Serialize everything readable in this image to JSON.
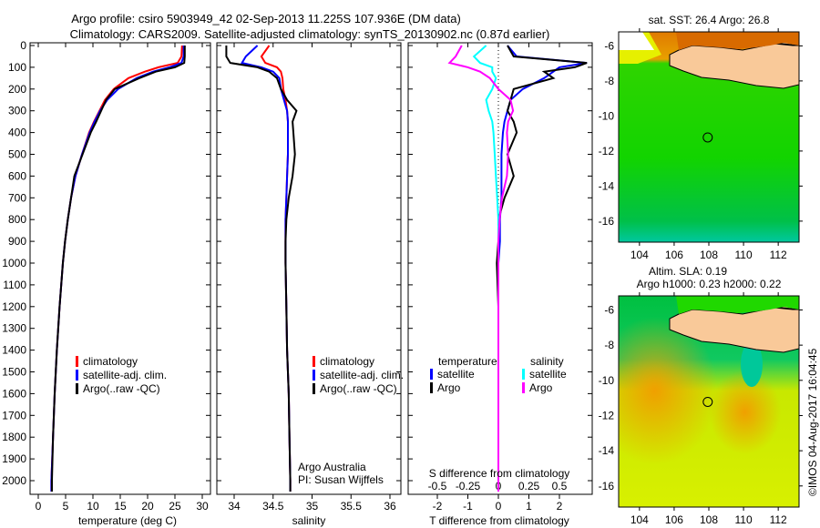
{
  "chart_data": [
    {
      "type": "line",
      "id": "temperature",
      "title_line1": "Argo profile: csiro 5903949_42 02-Sep-2013 11.225S 107.936E (DM data)",
      "title_line2": "Climatology: CARS2009. Satellite-adjusted climatology: synTS_20130902.nc (0.87d earlier)",
      "xlabel": "temperature (deg C)",
      "xlim": [
        -1.5,
        31.5
      ],
      "xticks": [
        0,
        5,
        10,
        15,
        20,
        25,
        30
      ],
      "ylim": [
        0,
        2060
      ],
      "yticks": [
        0,
        100,
        200,
        300,
        400,
        500,
        600,
        700,
        800,
        900,
        1000,
        1100,
        1200,
        1300,
        1400,
        1500,
        1600,
        1700,
        1800,
        1900,
        2000
      ],
      "depth": [
        0,
        50,
        80,
        100,
        120,
        150,
        200,
        250,
        300,
        350,
        400,
        500,
        600,
        700,
        800,
        900,
        1000,
        1200,
        1400,
        1600,
        1800,
        2000,
        2050
      ],
      "series": [
        {
          "name": "climatology",
          "color": "#ff0000",
          "values": [
            26.3,
            26.2,
            25.5,
            22,
            19.5,
            16.5,
            13.8,
            12.2,
            11.2,
            10.2,
            9.3,
            8,
            6.8,
            6,
            5.4,
            4.9,
            4.5,
            3.9,
            3.4,
            3.0,
            2.7,
            2.4,
            2.4
          ]
        },
        {
          "name": "satellite-adj. clim.",
          "color": "#0000ff",
          "values": [
            26.6,
            26.6,
            26.2,
            24,
            21,
            18,
            14.6,
            12.6,
            11.3,
            10.3,
            9.4,
            8,
            6.8,
            6,
            5.4,
            4.9,
            4.5,
            3.9,
            3.4,
            3.0,
            2.7,
            2.4,
            2.4
          ]
        },
        {
          "name": "Argo(..raw -QC)",
          "color": "#000000",
          "values": [
            26.8,
            26.8,
            26.7,
            25,
            21.5,
            18.5,
            14,
            12.4,
            11.5,
            10.6,
            9.6,
            8.1,
            6.6,
            6,
            5.4,
            4.9,
            4.5,
            3.9,
            3.4,
            3.0,
            2.7,
            2.5,
            2.5
          ]
        }
      ]
    },
    {
      "type": "line",
      "id": "salinity",
      "xlabel": "salinity",
      "xlim": [
        33.8,
        36.1
      ],
      "xticks": [
        34,
        34.5,
        35,
        35.5,
        36
      ],
      "depth": [
        0,
        50,
        80,
        100,
        120,
        150,
        200,
        250,
        300,
        350,
        400,
        500,
        600,
        700,
        800,
        900,
        1000,
        1200,
        1400,
        1600,
        1800,
        2000,
        2050
      ],
      "series": [
        {
          "name": "climatology",
          "color": "#ff0000",
          "values": [
            34.45,
            34.35,
            34.4,
            34.55,
            34.6,
            34.62,
            34.63,
            34.66,
            34.68,
            34.69,
            34.69,
            34.69,
            34.68,
            34.67,
            34.66,
            34.66,
            34.66,
            34.67,
            34.68,
            34.7,
            34.71,
            34.72,
            34.72
          ]
        },
        {
          "name": "satellite-adj. clim.",
          "color": "#0000ff",
          "values": [
            34.3,
            34.15,
            34.1,
            34.35,
            34.5,
            34.58,
            34.6,
            34.64,
            34.68,
            34.69,
            34.69,
            34.69,
            34.68,
            34.67,
            34.66,
            34.66,
            34.66,
            34.67,
            34.68,
            34.7,
            34.71,
            34.72,
            34.72
          ]
        },
        {
          "name": "Argo(..raw -QC)",
          "color": "#000000",
          "values": [
            33.9,
            33.9,
            33.95,
            34.3,
            34.45,
            34.55,
            34.6,
            34.68,
            34.8,
            34.75,
            34.76,
            34.78,
            34.75,
            34.7,
            34.67,
            34.66,
            34.66,
            34.67,
            34.68,
            34.7,
            34.71,
            34.72,
            34.72
          ]
        }
      ],
      "credit_line1": "Argo Australia",
      "credit_line2": "PI: Susan Wijffels"
    },
    {
      "type": "line",
      "id": "differences",
      "xlabel": "T difference from climatology",
      "xlabel_top": "S difference from climatology",
      "xlim": [
        -2,
        3
      ],
      "xticks": [
        -2,
        -1,
        0,
        1,
        2
      ],
      "sticks": [
        -0.5,
        -0.25,
        0,
        0.25,
        0.5
      ],
      "s_scale": 4,
      "legend_temperature": "temperature",
      "legend_salinity": "salinity",
      "depth": [
        0,
        50,
        80,
        100,
        120,
        150,
        200,
        250,
        300,
        350,
        400,
        500,
        600,
        700,
        800,
        900,
        1000,
        1200,
        1400,
        1600,
        1800,
        2000,
        2050
      ],
      "series": [
        {
          "name": "satellite",
          "group": "temperature",
          "color": "#0000ff",
          "values": [
            0.3,
            0.6,
            2.9,
            2.0,
            1.8,
            1.5,
            0.8,
            0.4,
            0.3,
            0.2,
            0.15,
            0.1,
            0.1,
            0.1,
            0.05,
            0.05,
            0,
            0,
            0,
            0,
            0,
            0,
            0
          ]
        },
        {
          "name": "Argo",
          "group": "temperature",
          "color": "#000000",
          "values": [
            0.3,
            0.5,
            2.9,
            2.5,
            1.5,
            1.8,
            0.5,
            0.4,
            0.3,
            0.5,
            0.6,
            0.3,
            0.5,
            0.2,
            0,
            0,
            -0.05,
            0,
            0,
            0,
            0,
            0,
            0
          ]
        },
        {
          "name": "satellite",
          "group": "salinity",
          "color": "#00ffff",
          "values": [
            -0.1,
            -0.2,
            -0.15,
            -0.05,
            -0.05,
            -0.02,
            -0.05,
            -0.1,
            -0.08,
            -0.05,
            -0.04,
            -0.03,
            -0.02,
            -0.01,
            0,
            0,
            0,
            0,
            0,
            0,
            0,
            0,
            0
          ]
        },
        {
          "name": "Argo",
          "group": "salinity",
          "color": "#ff00ff",
          "values": [
            -0.3,
            -0.35,
            -0.4,
            -0.25,
            -0.15,
            -0.07,
            0.0,
            0.1,
            0.12,
            0.08,
            0.07,
            0.08,
            0.07,
            0.03,
            0.01,
            0,
            0,
            0,
            0,
            0,
            0,
            0,
            0
          ]
        }
      ]
    },
    {
      "type": "heatmap",
      "id": "sst-map",
      "title": "sat. SST: 26.4 Argo: 26.8",
      "xticks": [
        104,
        106,
        108,
        110,
        112
      ],
      "yticks": [
        -6,
        -8,
        -10,
        -12,
        -14,
        -16
      ],
      "xlim": [
        102.8,
        113.2
      ],
      "ylim": [
        -17.2,
        -5.2
      ],
      "float_position": [
        107.936,
        -11.225
      ]
    },
    {
      "type": "heatmap",
      "id": "sla-map",
      "title_line1": "Altim. SLA: 0.19",
      "title_line2": "Argo h1000: 0.23 h2000: 0.22",
      "xticks": [
        104,
        106,
        108,
        110,
        112
      ],
      "yticks": [
        -6,
        -8,
        -10,
        -12,
        -14,
        -16
      ],
      "xlim": [
        102.8,
        113.2
      ],
      "ylim": [
        -17.2,
        -5.2
      ],
      "float_position": [
        107.936,
        -11.225
      ]
    }
  ],
  "watermark": "©IMOS 04-Aug-2017 16:04:45"
}
